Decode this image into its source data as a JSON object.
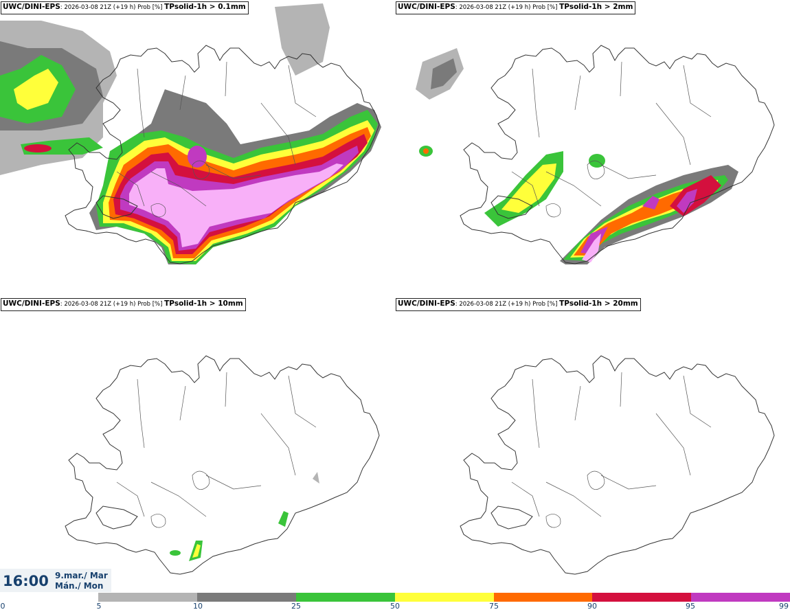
{
  "panels": [
    {
      "model": "UWC/DINI-EPS",
      "run": ": 2026-03-08 21Z (+19 h) Prob [%] ",
      "field": "TPsolid-1h > 0.1mm"
    },
    {
      "model": "UWC/DINI-EPS",
      "run": ": 2026-03-08 21Z (+19 h) Prob [%] ",
      "field": "TPsolid-1h > 2mm"
    },
    {
      "model": "UWC/DINI-EPS",
      "run": ": 2026-03-08 21Z (+19 h) Prob [%] ",
      "field": "TPsolid-1h > 10mm"
    },
    {
      "model": "UWC/DINI-EPS",
      "run": ": 2026-03-08 21Z (+19 h) Prob [%] ",
      "field": "TPsolid-1h > 20mm"
    }
  ],
  "valid_time": {
    "time": "16:00",
    "date_line1": "9.mar./ Mar",
    "date_line2": "Mán./ Mon"
  },
  "colorbar": {
    "labels": [
      "0",
      "5",
      "10",
      "25",
      "50",
      "75",
      "90",
      "95",
      "99"
    ],
    "segments": [
      {
        "color": "#ffffff"
      },
      {
        "color": "#b4b4b4"
      },
      {
        "color": "#7a7a7a"
      },
      {
        "color": "#3ac43a"
      },
      {
        "color": "#ffff3a"
      },
      {
        "color": "#ff6a00"
      },
      {
        "color": "#d4103e"
      },
      {
        "color": "#c03ac0"
      },
      {
        "color": "#f8b0f8"
      }
    ]
  },
  "legend_colors": {
    "c5": "#b4b4b4",
    "c10": "#7a7a7a",
    "c25": "#3ac43a",
    "c50": "#ffff3a",
    "c75": "#ff6a00",
    "c90": "#d4103e",
    "c95": "#c03ac0",
    "c99": "#f8b0f8"
  }
}
